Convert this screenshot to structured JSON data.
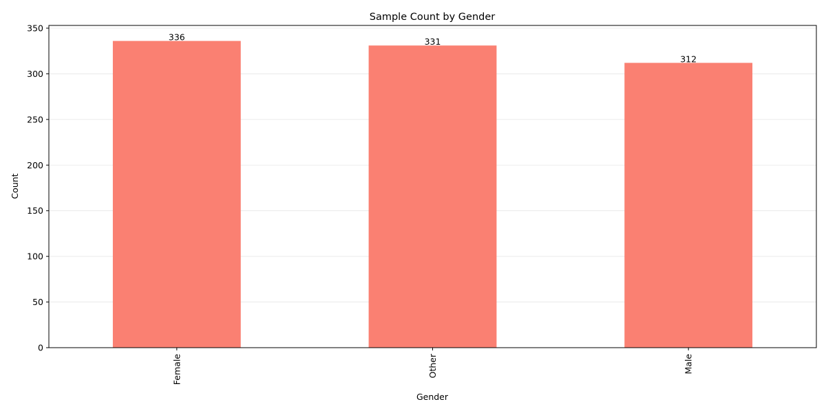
{
  "chart_data": {
    "type": "bar",
    "title": "Sample Count by Gender",
    "xlabel": "Gender",
    "ylabel": "Count",
    "categories": [
      "Female",
      "Other",
      "Male"
    ],
    "values": [
      336,
      331,
      312
    ],
    "data_labels": [
      "336",
      "331",
      "312"
    ],
    "ylim": [
      0,
      353
    ],
    "yticks": [
      0,
      50,
      100,
      150,
      200,
      250,
      300,
      350
    ],
    "ytick_labels": [
      "0",
      "50",
      "100",
      "150",
      "200",
      "250",
      "300",
      "350"
    ],
    "grid": "y-axis",
    "bar_color": "#fa8072",
    "grid_color": "#e6e6e6"
  }
}
